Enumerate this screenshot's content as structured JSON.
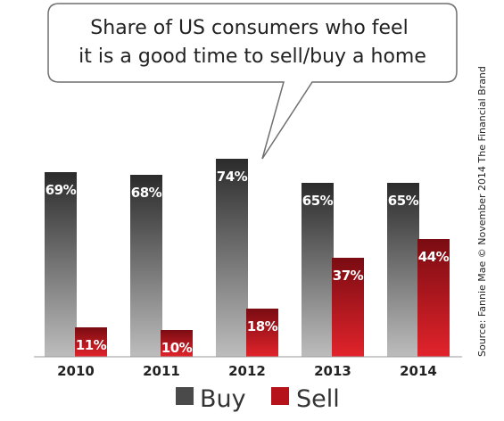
{
  "chart_data": {
    "type": "bar",
    "title": "Share of US consumers who feel it is a good time to sell/buy a home",
    "title_lines": [
      "Share of US consumers who feel",
      "it is a good time to sell/buy a home"
    ],
    "categories": [
      "2010",
      "2011",
      "2012",
      "2013",
      "2014"
    ],
    "series": [
      {
        "name": "Buy",
        "values": [
          69,
          68,
          74,
          65,
          65
        ],
        "labels": [
          "69%",
          "68%",
          "74%",
          "65%",
          "65%"
        ],
        "color": "#3a3a3a"
      },
      {
        "name": "Sell",
        "values": [
          11,
          10,
          18,
          37,
          44
        ],
        "labels": [
          "11%",
          "10%",
          "18%",
          "37%",
          "44%"
        ],
        "color": "#b5121b"
      }
    ],
    "ylim": [
      0,
      100
    ],
    "grid": false,
    "legend_position": "bottom-center",
    "source": "Source: Fannie Mae © November 2014 The Financial Brand"
  }
}
